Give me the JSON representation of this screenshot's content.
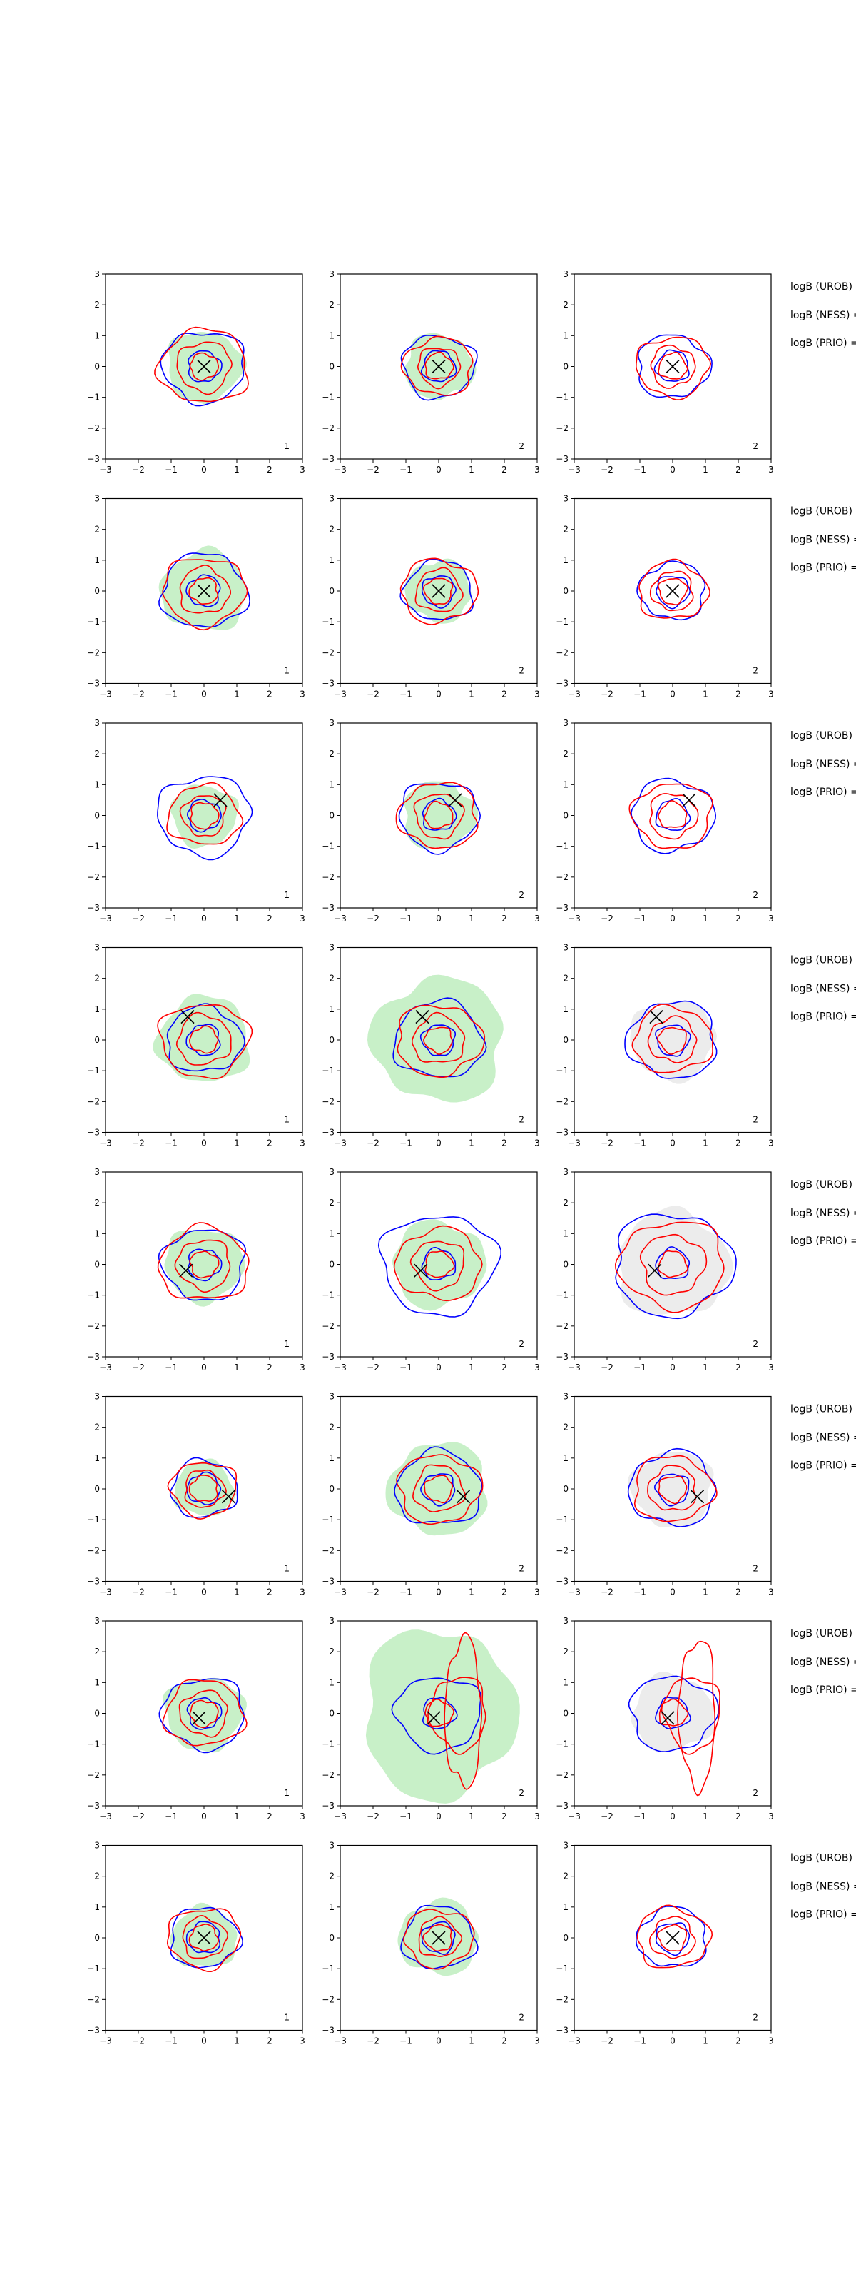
{
  "chart_data": {
    "type": "contour",
    "layout": {
      "rows": 8,
      "cols": 3
    },
    "axes": {
      "xlim": [
        -3,
        3
      ],
      "ylim": [
        -3,
        3
      ],
      "xticks": [
        -3,
        -2,
        -1,
        0,
        1,
        2,
        3
      ],
      "yticks": [
        -3,
        -2,
        -1,
        0,
        1,
        2,
        3
      ],
      "tick_labels": [
        "−3",
        "−2",
        "−1",
        "0",
        "1",
        "2",
        "3"
      ]
    },
    "panel_labels": [
      "1",
      "2",
      "2"
    ],
    "row_annotations": [
      "logB (UROB)",
      "logB (NESS) =",
      "logB (PRIO) ="
    ],
    "colors": {
      "blue_contour": "#0000ff",
      "red_contour": "#ff0000",
      "green_fill": "#c8f0c8",
      "grey_fill": "#ececec",
      "marker": "#000000"
    },
    "rows": [
      {
        "marker": [
          0.0,
          0.0
        ],
        "blue_scale": [
          1.25,
          1.1,
          1.1
        ],
        "red_scale": [
          1.35,
          1.05,
          1.1
        ],
        "green_scale": [
          1.15,
          1.05
        ],
        "elongated_red_mid": false,
        "grey_right": false
      },
      {
        "marker": [
          0.0,
          0.0
        ],
        "blue_scale": [
          1.3,
          1.05,
          1.0
        ],
        "red_scale": [
          1.25,
          1.15,
          1.05
        ],
        "green_scale": [
          1.3,
          1.0
        ],
        "elongated_red_mid": false,
        "grey_right": false
      },
      {
        "marker": [
          0.5,
          0.5
        ],
        "blue_scale": [
          1.4,
          1.2,
          1.25
        ],
        "red_scale": [
          1.1,
          1.2,
          1.2
        ],
        "green_scale": [
          1.0,
          1.1
        ],
        "elongated_red_mid": false,
        "grey_right": false
      },
      {
        "marker": [
          -0.5,
          0.75
        ],
        "blue_scale": [
          1.15,
          1.35,
          1.35
        ],
        "red_scale": [
          1.35,
          1.3,
          1.2
        ],
        "green_scale": [
          1.4,
          2.0
        ],
        "elongated_red_mid": false,
        "grey_right": true
      },
      {
        "marker": [
          -0.55,
          -0.2
        ],
        "blue_scale": [
          1.25,
          1.75,
          1.8
        ],
        "red_scale": [
          1.35,
          1.3,
          1.6
        ],
        "green_scale": [
          1.2,
          1.4
        ],
        "elongated_red_mid": false,
        "grey_right": true
      },
      {
        "marker": [
          0.75,
          -0.25
        ],
        "blue_scale": [
          1.0,
          1.3,
          1.3
        ],
        "red_scale": [
          1.0,
          1.25,
          1.2
        ],
        "green_scale": [
          0.9,
          1.5
        ],
        "elongated_red_mid": false,
        "grey_right": true
      },
      {
        "marker": [
          -0.15,
          -0.15
        ],
        "blue_scale": [
          1.25,
          1.3,
          1.3
        ],
        "red_scale": [
          1.2,
          1.2,
          1.3
        ],
        "green_scale": [
          1.2,
          2.3
        ],
        "elongated_red_mid": true,
        "grey_right": true
      },
      {
        "marker": [
          0.0,
          0.0
        ],
        "blue_scale": [
          1.05,
          1.1,
          1.05
        ],
        "red_scale": [
          1.1,
          1.05,
          1.1
        ],
        "green_scale": [
          1.0,
          1.2
        ],
        "elongated_red_mid": false,
        "grey_right": false
      }
    ]
  }
}
